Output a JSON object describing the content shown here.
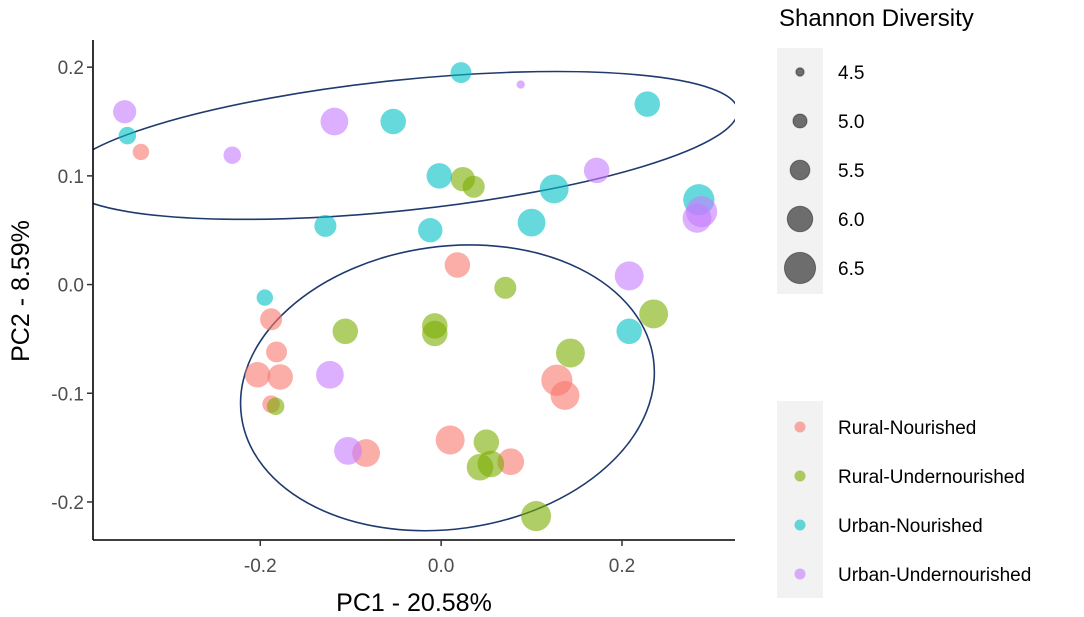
{
  "chart_data": {
    "type": "scatter",
    "xlabel": "PC1 - 20.58%",
    "ylabel": "PC2 - 8.59%",
    "xlim": [
      -0.385,
      0.325
    ],
    "ylim": [
      -0.235,
      0.225
    ],
    "x_ticks": [
      {
        "value": -0.2,
        "label": "-0.2"
      },
      {
        "value": 0.0,
        "label": "0.0"
      },
      {
        "value": 0.2,
        "label": "0.2"
      }
    ],
    "y_ticks": [
      {
        "value": 0.2,
        "label": "0.2"
      },
      {
        "value": 0.1,
        "label": "0.1"
      },
      {
        "value": 0.0,
        "label": "0.0"
      },
      {
        "value": -0.1,
        "label": "-0.1"
      },
      {
        "value": -0.2,
        "label": "-0.2"
      }
    ],
    "grid": false,
    "size_legend": {
      "title": "Shannon Diversity",
      "values": [
        {
          "value": 4.5,
          "label": "4.5"
        },
        {
          "value": 5.0,
          "label": "5.0"
        },
        {
          "value": 5.5,
          "label": "5.5"
        },
        {
          "value": 6.0,
          "label": "6.0"
        },
        {
          "value": 6.5,
          "label": "6.5"
        }
      ]
    },
    "groups": [
      {
        "name": "Rural-Nourished",
        "color": "#F8766D"
      },
      {
        "name": "Rural-Undernourished",
        "color": "#7CAE00"
      },
      {
        "name": "Urban-Nourished",
        "color": "#00BFC4"
      },
      {
        "name": "Urban-Undernourished",
        "color": "#C77CFF"
      }
    ],
    "ellipses": [
      {
        "center": [
          -0.045,
          0.128
        ],
        "semi_axes": [
          0.375,
          0.06
        ],
        "rotation_deg": -6,
        "color": "#1F3A6E"
      },
      {
        "center": [
          0.007,
          -0.095
        ],
        "semi_axes": [
          0.23,
          0.13
        ],
        "rotation_deg": -8,
        "color": "#1F3A6E"
      }
    ],
    "series": [
      {
        "name": "Rural-Nourished",
        "points": [
          {
            "x": -0.332,
            "y": 0.122,
            "size": 5.2
          },
          {
            "x": 0.018,
            "y": 0.018,
            "size": 6.0
          },
          {
            "x": -0.188,
            "y": -0.032,
            "size": 5.7
          },
          {
            "x": -0.182,
            "y": -0.062,
            "size": 5.6
          },
          {
            "x": -0.203,
            "y": -0.083,
            "size": 6.0
          },
          {
            "x": -0.178,
            "y": -0.085,
            "size": 6.0
          },
          {
            "x": -0.188,
            "y": -0.11,
            "size": 5.3
          },
          {
            "x": -0.083,
            "y": -0.155,
            "size": 6.2
          },
          {
            "x": 0.01,
            "y": -0.143,
            "size": 6.3
          },
          {
            "x": 0.077,
            "y": -0.163,
            "size": 6.1
          },
          {
            "x": 0.128,
            "y": -0.088,
            "size": 6.5
          },
          {
            "x": 0.137,
            "y": -0.102,
            "size": 6.3
          }
        ]
      },
      {
        "name": "Rural-Undernourished",
        "points": [
          {
            "x": 0.024,
            "y": 0.097,
            "size": 5.9
          },
          {
            "x": 0.036,
            "y": 0.09,
            "size": 5.7
          },
          {
            "x": 0.071,
            "y": -0.003,
            "size": 5.7
          },
          {
            "x": 0.235,
            "y": -0.027,
            "size": 6.3
          },
          {
            "x": -0.106,
            "y": -0.043,
            "size": 6.0
          },
          {
            "x": -0.007,
            "y": -0.038,
            "size": 6.0
          },
          {
            "x": -0.007,
            "y": -0.045,
            "size": 6.0
          },
          {
            "x": 0.143,
            "y": -0.063,
            "size": 6.3
          },
          {
            "x": -0.183,
            "y": -0.112,
            "size": 5.3
          },
          {
            "x": 0.05,
            "y": -0.145,
            "size": 6.0
          },
          {
            "x": 0.043,
            "y": -0.168,
            "size": 6.1
          },
          {
            "x": 0.055,
            "y": -0.165,
            "size": 6.1
          },
          {
            "x": 0.105,
            "y": -0.213,
            "size": 6.4
          }
        ]
      },
      {
        "name": "Urban-Nourished",
        "points": [
          {
            "x": 0.022,
            "y": 0.195,
            "size": 5.6
          },
          {
            "x": 0.228,
            "y": 0.166,
            "size": 6.0
          },
          {
            "x": -0.347,
            "y": 0.137,
            "size": 5.3
          },
          {
            "x": -0.053,
            "y": 0.15,
            "size": 6.0
          },
          {
            "x": -0.002,
            "y": 0.1,
            "size": 6.0
          },
          {
            "x": 0.125,
            "y": 0.088,
            "size": 6.3
          },
          {
            "x": 0.285,
            "y": 0.078,
            "size": 6.5
          },
          {
            "x": -0.128,
            "y": 0.054,
            "size": 5.7
          },
          {
            "x": 0.1,
            "y": 0.057,
            "size": 6.2
          },
          {
            "x": -0.012,
            "y": 0.05,
            "size": 5.9
          },
          {
            "x": -0.195,
            "y": -0.012,
            "size": 5.2
          },
          {
            "x": 0.208,
            "y": -0.043,
            "size": 6.0
          }
        ]
      },
      {
        "name": "Urban-Undernourished",
        "points": [
          {
            "x": 0.088,
            "y": 0.184,
            "size": 4.5
          },
          {
            "x": -0.35,
            "y": 0.159,
            "size": 5.8
          },
          {
            "x": -0.118,
            "y": 0.15,
            "size": 6.2
          },
          {
            "x": -0.231,
            "y": 0.119,
            "size": 5.3
          },
          {
            "x": 0.172,
            "y": 0.105,
            "size": 6.0
          },
          {
            "x": 0.288,
            "y": 0.067,
            "size": 6.5
          },
          {
            "x": 0.283,
            "y": 0.061,
            "size": 6.3
          },
          {
            "x": 0.208,
            "y": 0.008,
            "size": 6.3
          },
          {
            "x": -0.123,
            "y": -0.083,
            "size": 6.2
          },
          {
            "x": -0.103,
            "y": -0.153,
            "size": 6.2
          }
        ]
      }
    ]
  }
}
